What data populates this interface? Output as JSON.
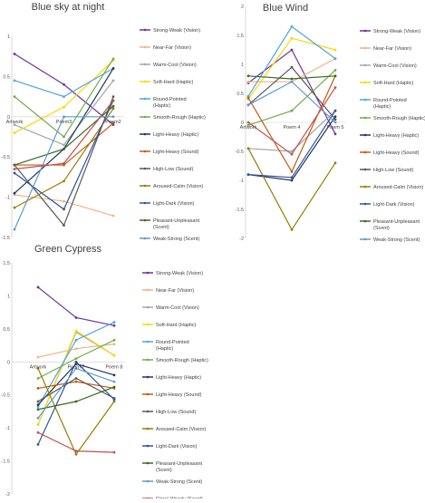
{
  "colors": [
    "#7030a0",
    "#f4b183",
    "#a5a5a5",
    "#ffd700",
    "#4da6e0",
    "#70ad47",
    "#1f3864",
    "#c55a11",
    "#595959",
    "#9c7c00",
    "#2e5597",
    "#3a6b22",
    "#5b9bd5",
    "#c0504d"
  ],
  "legend": [
    "Strong-Weak (Vision)",
    "Near-Far (Vision)",
    "Warm-Cool (Vision)",
    "Soft-Hard (Haptic)",
    "Round-Pointed (Haptic)",
    "Smooth-Rough (Haptic)",
    "Light-Heavy (Haptic)",
    "Light-Heavy (Sound)",
    "High-Low (Sound)",
    "Aroused-Calm (Vision)",
    "Light-Dark (Vision)",
    "Pleasant-Unpleasant (Scent)",
    "Weak-Strong (Scent)",
    "Floral-Woody (Scent)"
  ],
  "chart_data": [
    {
      "type": "line",
      "title": "Blue sky at night",
      "categories": [
        "Artwork",
        "Poem3",
        "Poem2"
      ],
      "ylim": [
        -1.5,
        1.0
      ],
      "yticks": [
        "1",
        "0.5",
        "0",
        "-0.5",
        "-1",
        "-1.5"
      ],
      "grid": false,
      "legend_position": "right",
      "series": [
        {
          "name": "Strong-Weak (Vision)",
          "values": [
            0.78,
            0.4,
            -0.1
          ]
        },
        {
          "name": "Near-Far (Vision)",
          "values": [
            -0.97,
            -1.05,
            -1.23
          ]
        },
        {
          "name": "Warm-Cool (Vision)",
          "values": [
            -0.1,
            -0.35,
            0.45
          ]
        },
        {
          "name": "Soft-Hard (Haptic)",
          "values": [
            -0.2,
            0.12,
            0.7
          ]
        },
        {
          "name": "Round-Pointed (Haptic)",
          "values": [
            0.45,
            0.25,
            0.6
          ]
        },
        {
          "name": "Smooth-Rough (Haptic)",
          "values": [
            0.25,
            -0.25,
            0.72
          ]
        },
        {
          "name": "Light-Heavy (Haptic)",
          "values": [
            -0.95,
            -0.4,
            0.6
          ]
        },
        {
          "name": "Light-Heavy (Sound)",
          "values": [
            -0.6,
            -0.6,
            -0.08
          ]
        },
        {
          "name": "High-Low (Sound)",
          "values": [
            -0.6,
            -1.35,
            0.25
          ]
        },
        {
          "name": "Aroused-Calm (Vision)",
          "values": [
            -1.13,
            -0.8,
            0.1
          ]
        },
        {
          "name": "Light-Dark (Vision)",
          "values": [
            -0.7,
            -1.15,
            0.2
          ]
        },
        {
          "name": "Pleasant-Unpleasant (Scent)",
          "values": [
            -0.6,
            -0.4,
            0.13
          ]
        },
        {
          "name": "Weak-Strong (Scent)",
          "values": [
            -1.4,
            0.0,
            0.0
          ]
        },
        {
          "name": "Floral-Woody (Scent)",
          "values": [
            -0.65,
            -0.58,
            0.2
          ]
        }
      ]
    },
    {
      "type": "line",
      "title": "Blue Wind",
      "categories": [
        "Artwork",
        "Poem 4",
        "Poem 5"
      ],
      "ylim": [
        -2.0,
        2.0
      ],
      "yticks": [
        "2",
        "1.5",
        "1",
        "0.5",
        "0",
        "-0.5",
        "-1",
        "-1.5",
        "-2"
      ],
      "grid": false,
      "legend_position": "right",
      "series": [
        {
          "name": "Strong-Weak (Vision)",
          "values": [
            0.68,
            1.25,
            -0.2
          ]
        },
        {
          "name": "Near-Far (Vision)",
          "values": [
            0.7,
            0.7,
            1.1
          ]
        },
        {
          "name": "Warm-Cool (Vision)",
          "values": [
            -0.45,
            -0.5,
            0.2
          ]
        },
        {
          "name": "Soft-Hard (Haptic)",
          "values": [
            0.4,
            1.45,
            1.25
          ]
        },
        {
          "name": "Round-Pointed (Haptic)",
          "values": [
            0.45,
            1.65,
            1.1
          ]
        },
        {
          "name": "Smooth-Rough (Haptic)",
          "values": [
            -0.05,
            0.2,
            0.9
          ]
        },
        {
          "name": "Light-Heavy (Haptic)",
          "values": [
            -0.9,
            -1.0,
            0.1
          ]
        },
        {
          "name": "Light-Heavy (Sound)",
          "values": [
            0.42,
            -0.85,
            0.8
          ]
        },
        {
          "name": "High-Low (Sound)",
          "values": [
            0.3,
            0.95,
            0.05
          ]
        },
        {
          "name": "Aroused-Calm (Vision)",
          "values": [
            -0.45,
            -1.85,
            -0.7
          ]
        },
        {
          "name": "Light-Dark (Vision)",
          "values": [
            -0.9,
            -0.95,
            0.2
          ]
        },
        {
          "name": "Pleasant-Unpleasant (Scent)",
          "values": [
            0.8,
            0.75,
            0.8
          ]
        },
        {
          "name": "Weak-Strong (Scent)",
          "values": [
            0.3,
            0.7,
            0.0
          ]
        },
        {
          "name": "Floral-Woody (Scent)",
          "values": [
            0.0,
            -0.55,
            0.6
          ]
        }
      ]
    },
    {
      "type": "line",
      "title": "Green Cypress",
      "categories": [
        "Artwork",
        "Poem 7",
        "Poem 8"
      ],
      "ylim": [
        -2.0,
        1.5
      ],
      "yticks": [
        "1.5",
        "1",
        "0.5",
        "0",
        "-0.5",
        "-1",
        "-1.5",
        "-2"
      ],
      "grid": false,
      "legend_position": "right",
      "series": [
        {
          "name": "Strong-Weak (Vision)",
          "values": [
            1.13,
            0.67,
            0.55
          ]
        },
        {
          "name": "Near-Far (Vision)",
          "values": [
            0.07,
            0.2,
            0.27
          ]
        },
        {
          "name": "Warm-Cool (Vision)",
          "values": [
            -0.95,
            0.45,
            0.1
          ]
        },
        {
          "name": "Soft-Hard (Haptic)",
          "values": [
            -0.95,
            0.47,
            0.1
          ]
        },
        {
          "name": "Round-Pointed (Haptic)",
          "values": [
            -0.68,
            0.33,
            0.6
          ]
        },
        {
          "name": "Smooth-Rough (Haptic)",
          "values": [
            -0.25,
            0.05,
            0.33
          ]
        },
        {
          "name": "Light-Heavy (Haptic)",
          "values": [
            -0.65,
            -0.03,
            -0.2
          ]
        },
        {
          "name": "Light-Heavy (Sound)",
          "values": [
            -0.4,
            -0.3,
            -0.4
          ]
        },
        {
          "name": "High-Low (Sound)",
          "values": [
            -0.6,
            -0.25,
            -0.55
          ]
        },
        {
          "name": "Aroused-Calm (Vision)",
          "values": [
            -0.1,
            -1.4,
            -0.6
          ]
        },
        {
          "name": "Light-Dark (Vision)",
          "values": [
            -1.25,
            0.0,
            -0.57
          ]
        },
        {
          "name": "Pleasant-Unpleasant (Scent)",
          "values": [
            -0.72,
            -0.6,
            -0.38
          ]
        },
        {
          "name": "Weak-Strong (Scent)",
          "values": [
            -0.85,
            -0.1,
            -0.3
          ]
        },
        {
          "name": "Floral-Woody (Scent)",
          "values": [
            -1.07,
            -1.35,
            -1.37
          ]
        }
      ]
    }
  ]
}
